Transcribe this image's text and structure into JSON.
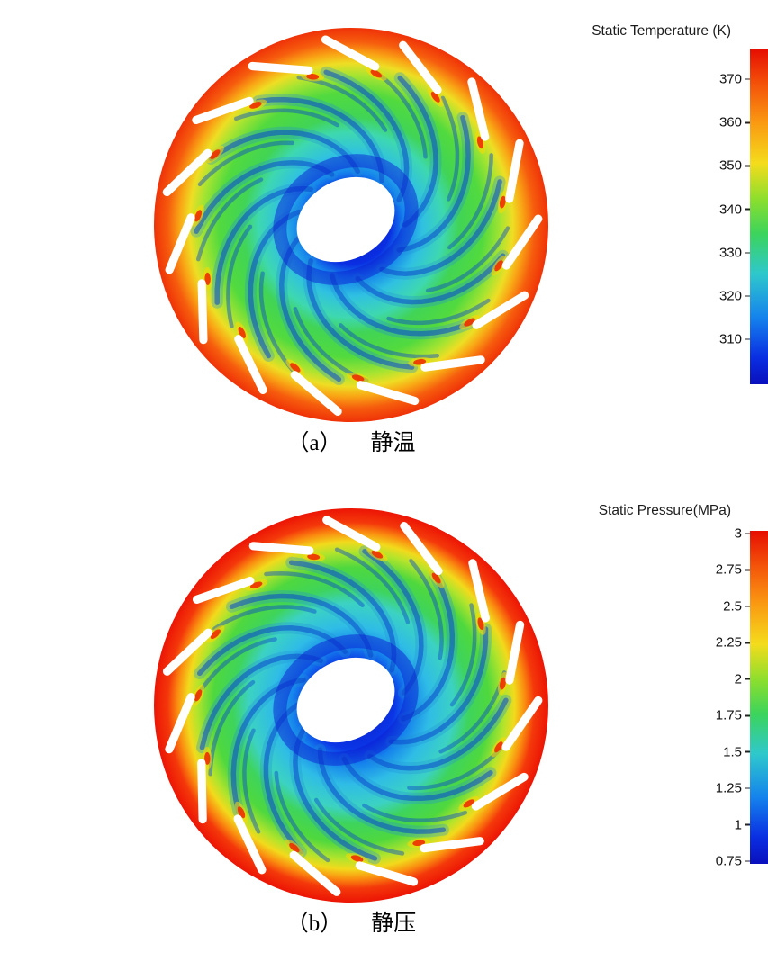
{
  "figures": [
    {
      "id": "a",
      "legend_title": "Static Temperature (K)",
      "caption_index": "（a）",
      "caption_label": "静温",
      "colorbar": {
        "ticks": [
          370,
          360,
          350,
          340,
          330,
          320,
          310
        ],
        "high_color": "#e60e02",
        "low_color": "#0a10bc"
      }
    },
    {
      "id": "b",
      "legend_title": "Static Pressure(MPa)",
      "caption_index": "（b）",
      "caption_label": "静压",
      "colorbar": {
        "ticks": [
          3,
          2.75,
          2.5,
          2.25,
          2,
          1.75,
          1.5,
          1.25,
          1,
          0.75
        ],
        "high_color": "#e60e02",
        "low_color": "#0a10bc"
      }
    }
  ],
  "chart_data": [
    {
      "type": "heatmap",
      "title": "Static Temperature (K)",
      "caption": "（a） 静温",
      "colormap": "rainbow (blue=low, red=high)",
      "colorbar_ticks": [
        370,
        360,
        350,
        340,
        330,
        320,
        310
      ],
      "colorbar_range_estimate": [
        305,
        378
      ],
      "legend_position": "right vertical colorbar",
      "description": "CFD contour of static temperature over a centrifugal impeller cross-section: lowest values (~305-315 K, dark blue) at the hub core around the white shaft hole, rising through cyan/green (~320-350 K) across the swept impeller blades, to the highest values (~360-378 K, orange-red) in the outer rim and vaned diffuser ring; small red hot spots at the leading edges of the white diffuser vanes."
    },
    {
      "type": "heatmap",
      "title": "Static Pressure(MPa)",
      "caption": "（b） 静压",
      "colormap": "rainbow (blue=low, red=high)",
      "colorbar_ticks": [
        3,
        2.75,
        2.5,
        2.25,
        2,
        1.75,
        1.5,
        1.25,
        1,
        0.75
      ],
      "colorbar_range": [
        0.75,
        3
      ],
      "legend_position": "right vertical colorbar",
      "description": "CFD contour of static pressure over the same impeller cross-section: lowest pressure (~0.75-1.25 MPa, blue) in the hub/inducer region near the white shaft hole, increasing radially through cyan and green (~1.5-2.25 MPa) to the highest pressure (~2.75-3 MPa, red) at the outer rim and diffuser passage with white vanes."
    }
  ]
}
